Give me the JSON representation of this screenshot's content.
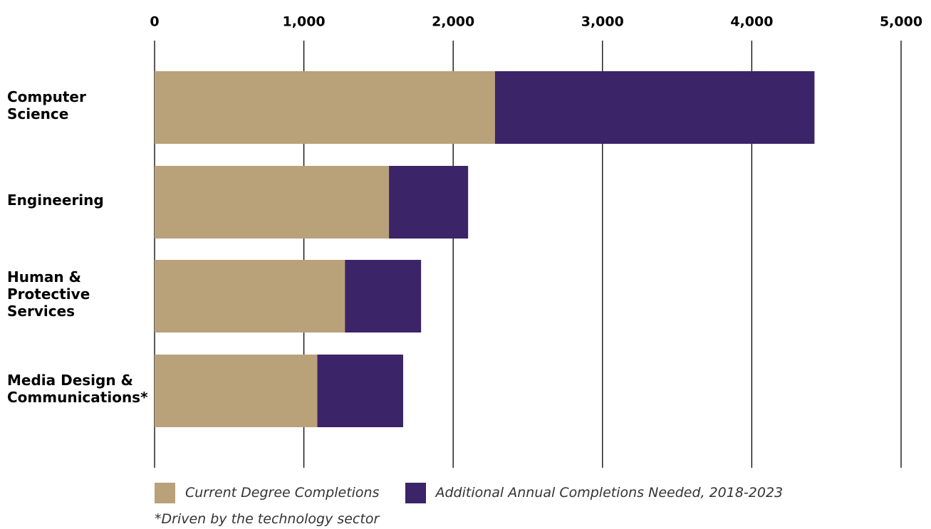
{
  "chart_data": {
    "type": "bar",
    "orientation": "horizontal",
    "stacked": true,
    "categories": [
      [
        "Computer",
        "Science"
      ],
      [
        "Engineering"
      ],
      [
        "Human &",
        "Protective",
        "Services"
      ],
      [
        "Media Design &",
        "Communications*"
      ]
    ],
    "series": [
      {
        "name": "Current Degree Completions",
        "color": "#b9a17a",
        "values": [
          2280,
          1570,
          1275,
          1090
        ]
      },
      {
        "name": "Additional Annual Completions Needed, 2018-2023",
        "color": "#3b2468",
        "values": [
          2140,
          530,
          510,
          575
        ]
      }
    ],
    "xlim": [
      0,
      5000
    ],
    "xticks": [
      0,
      1000,
      2000,
      3000,
      4000,
      5000
    ],
    "xtick_labels": [
      "0",
      "1,000",
      "2,000",
      "3,000",
      "4,000",
      "5,000"
    ],
    "axis_position": "top",
    "grid": true,
    "legend_position": "bottom-left",
    "title": "",
    "xlabel": "",
    "ylabel": ""
  },
  "legend": {
    "current_label": "Current Degree Completions",
    "additional_label": "Additional Annual Completions Needed, 2018-2023"
  },
  "footnote": "*Driven by the technology sector"
}
